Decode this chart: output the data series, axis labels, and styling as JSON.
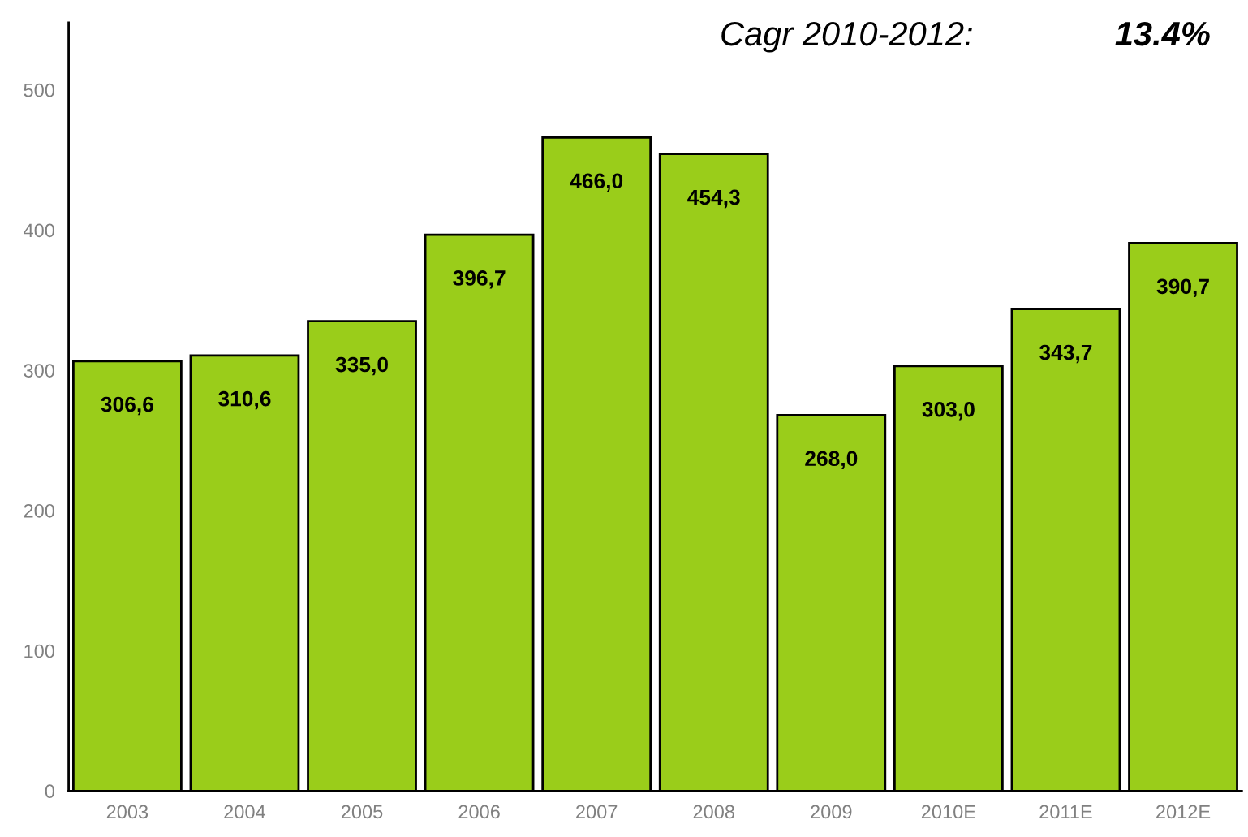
{
  "chart_data": {
    "type": "bar",
    "categories": [
      "2003",
      "2004",
      "2005",
      "2006",
      "2007",
      "2008",
      "2009",
      "2010E",
      "2011E",
      "2012E"
    ],
    "values": [
      306.6,
      310.6,
      335.0,
      396.7,
      466.0,
      454.3,
      268.0,
      303.0,
      343.7,
      390.7
    ],
    "value_labels": [
      "306,6",
      "310,6",
      "335,0",
      "396,7",
      "466,0",
      "454,3",
      "268,0",
      "303,0",
      "343,7",
      "390,7"
    ],
    "color": "#9acd1a",
    "ylim": [
      0,
      548
    ],
    "yticks": [
      0,
      100,
      200,
      300,
      400,
      500
    ],
    "grid": false,
    "legend": false,
    "annotations": [
      "Cagr 2010-2012:",
      "13.4%"
    ]
  }
}
